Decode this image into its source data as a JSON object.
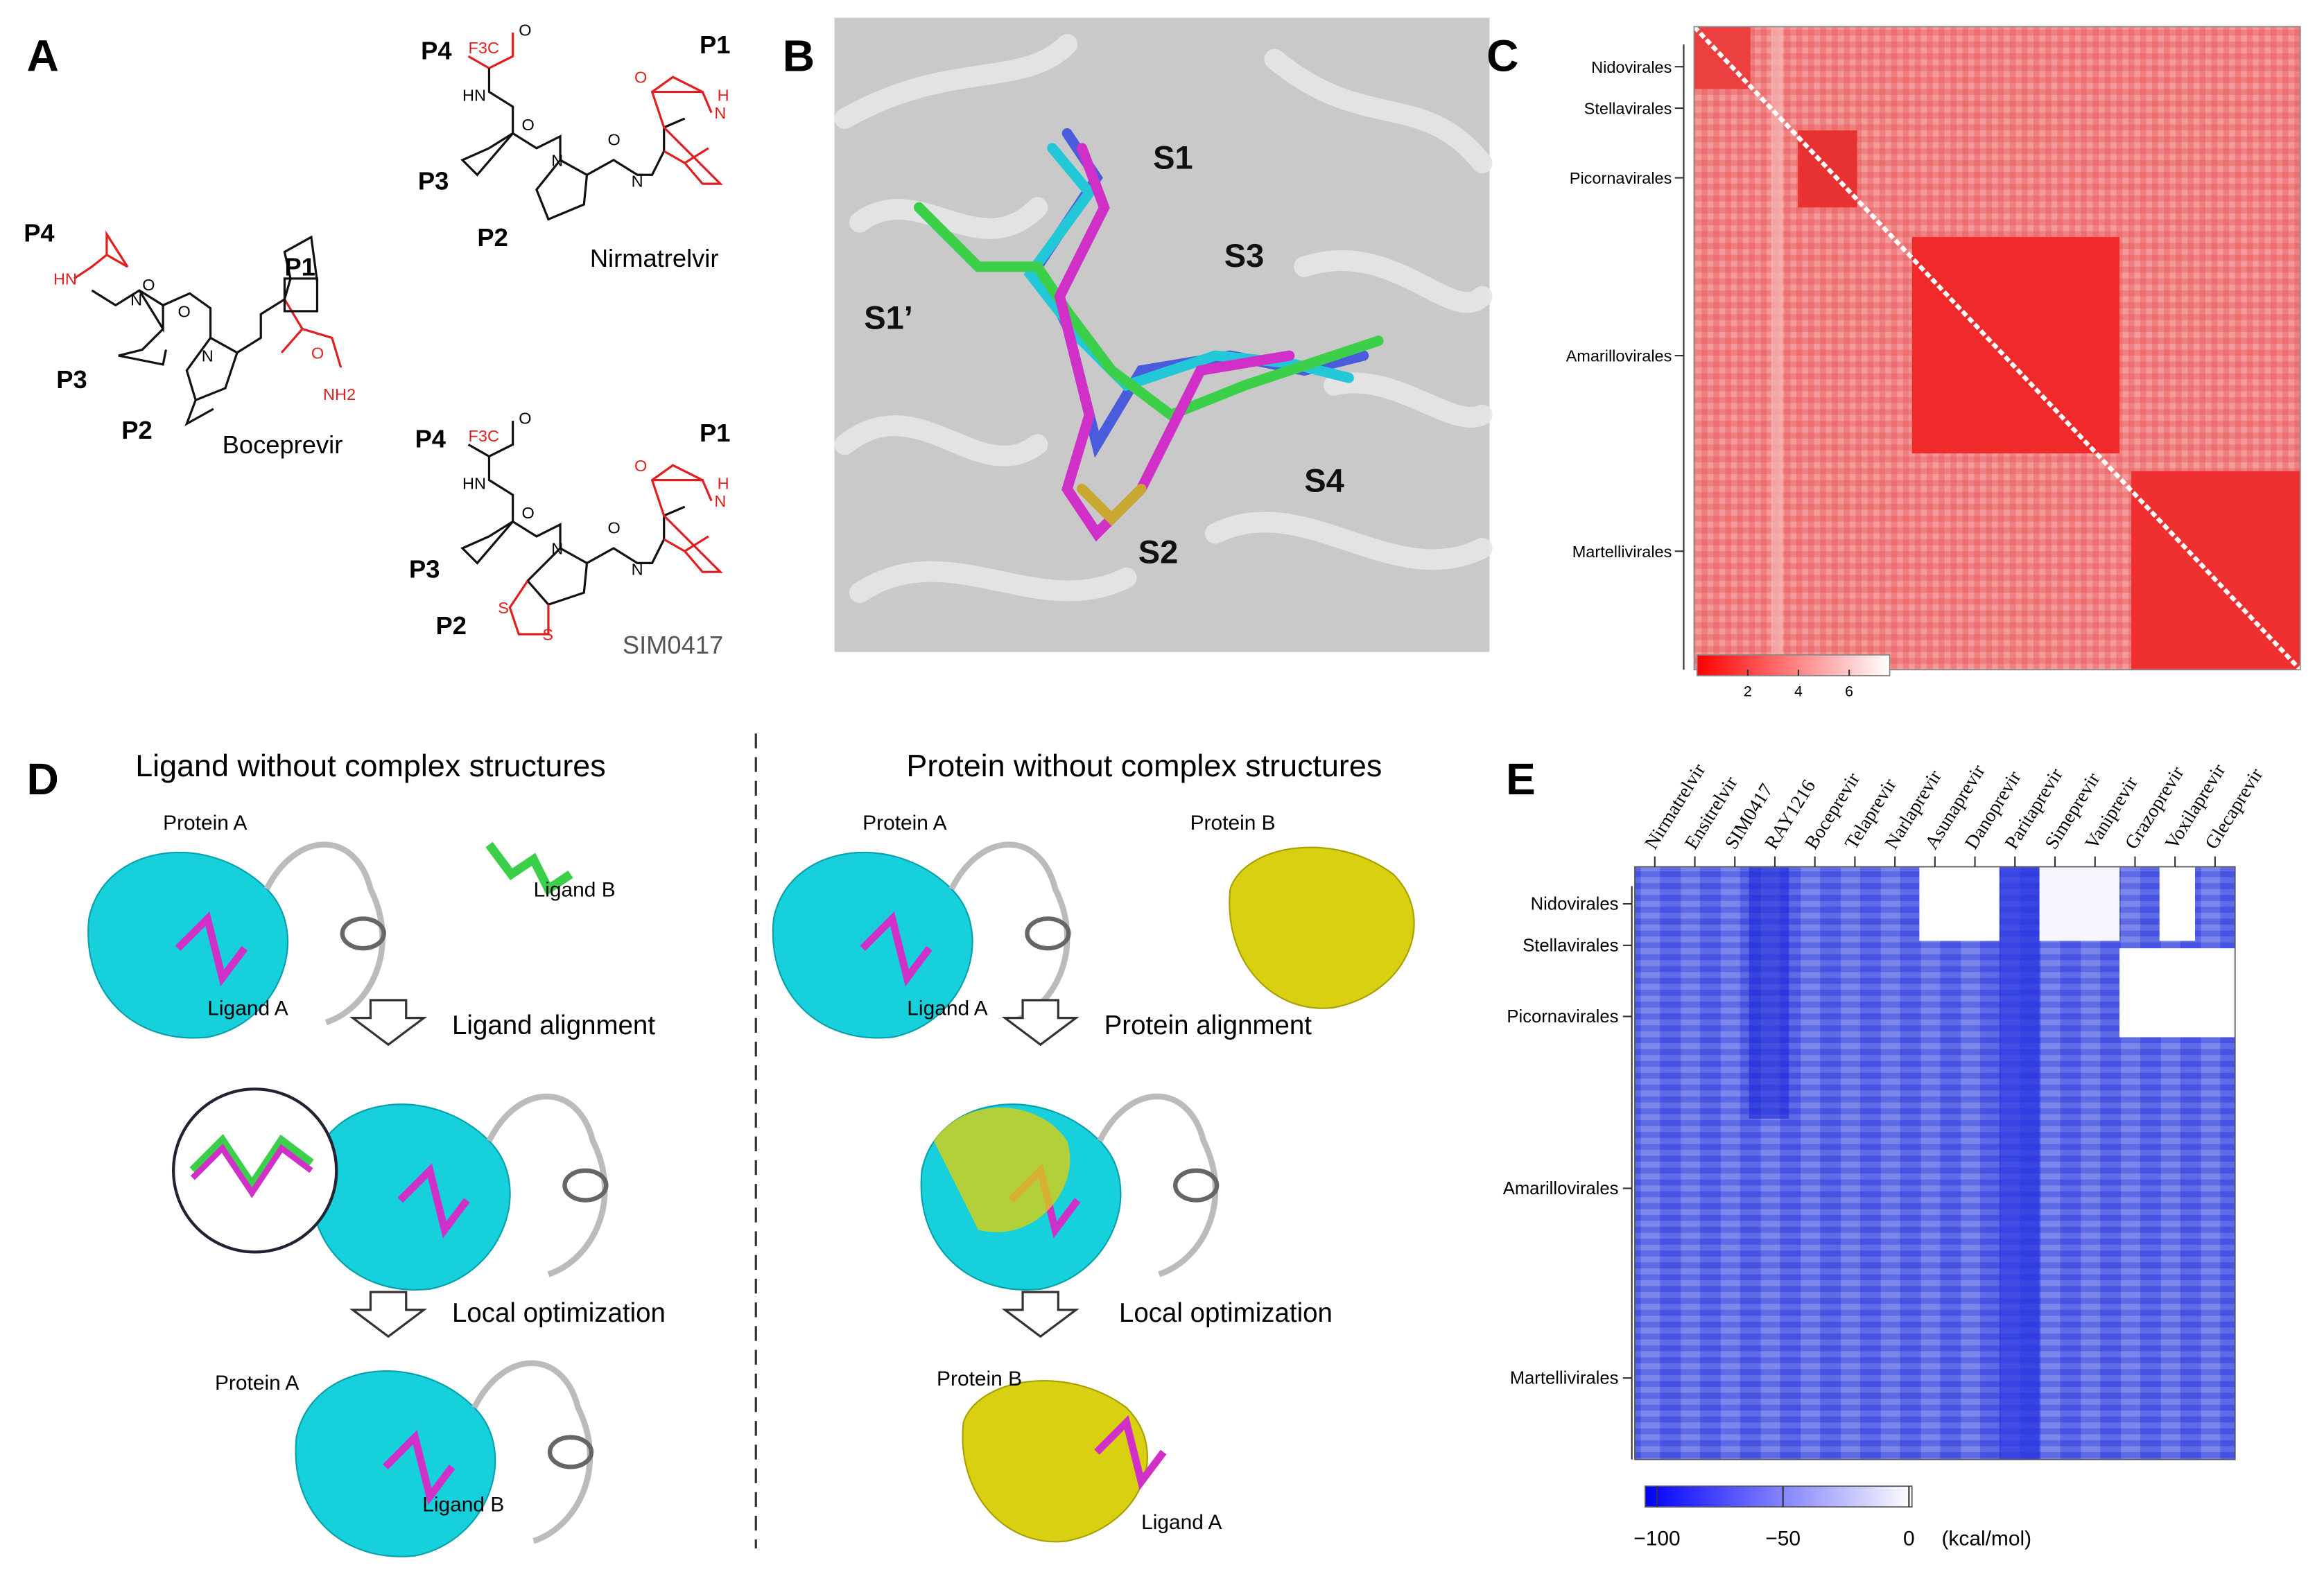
{
  "panel_a": {
    "label": "A",
    "boceprevir": {
      "name": "Boceprevir",
      "groups": [
        "P4",
        "P3",
        "P2",
        "P1"
      ],
      "atoms": [
        "HN",
        "N",
        "N",
        "O",
        "O",
        "O",
        "NH2"
      ]
    },
    "nirmatrelvir": {
      "name": "Nirmatrelvir",
      "groups": [
        "P4",
        "P3",
        "P2",
        "P1"
      ],
      "atoms": [
        "F3C",
        "HN",
        "N",
        "N",
        "N",
        "H",
        "O",
        "O",
        "O",
        "O"
      ]
    },
    "sim0417": {
      "name": "SIM0417",
      "groups": [
        "P4",
        "P3",
        "P2",
        "P1"
      ],
      "atoms": [
        "F3C",
        "HN",
        "N",
        "N",
        "N",
        "H",
        "S",
        "S",
        "O",
        "O",
        "O",
        "O"
      ]
    }
  },
  "panel_b": {
    "label": "B",
    "sites": [
      "S1",
      "S3",
      "S1’",
      "S4",
      "S2"
    ]
  },
  "panel_c": {
    "label": "C",
    "orders": [
      "Nidovirales",
      "Stellavirales",
      "Picornavirales",
      "Amarillovirales",
      "Martellivirales"
    ],
    "colorbar_lim": [
      0,
      7.6
    ],
    "colorbar_ticks": [
      2,
      4,
      6
    ]
  },
  "panel_d": {
    "label": "D",
    "left": {
      "title": "Ligand without complex structures",
      "labels": [
        "Protein A",
        "Ligand B",
        "Ligand A",
        "Ligand alignment",
        "Local optimization",
        "Protein A",
        "Ligand B"
      ]
    },
    "right": {
      "title": "Protein without complex structures",
      "labels": [
        "Protein A",
        "Protein B",
        "Ligand A",
        "Protein alignment",
        "Local optimization",
        "Protein B",
        "Ligand A"
      ]
    }
  },
  "panel_e": {
    "label": "E",
    "drugs": [
      "Nirmatrelvir",
      "Ensitrelvir",
      "SIM0417",
      "RAY1216",
      "Boceprevir",
      "Telaprevir",
      "Narlaprevir",
      "Asunaprevir",
      "Danoprevir",
      "Paritaprevir",
      "Simeprevir",
      "Vaniprevir",
      "Grazoprevir",
      "Voxilaprevir",
      "Glecaprevir"
    ],
    "orders": [
      "Nidovirales",
      "Stellavirales",
      "Picornavirales",
      "Amarillovirales",
      "Martellivirales"
    ],
    "colorbar_lim": [
      -104.7,
      1.2
    ],
    "colorbar_ticks": [
      {
        "value": -100,
        "label": "−100"
      },
      {
        "value": -50,
        "label": "−50"
      },
      0
    ],
    "unit": "(kcal/mol)"
  }
}
